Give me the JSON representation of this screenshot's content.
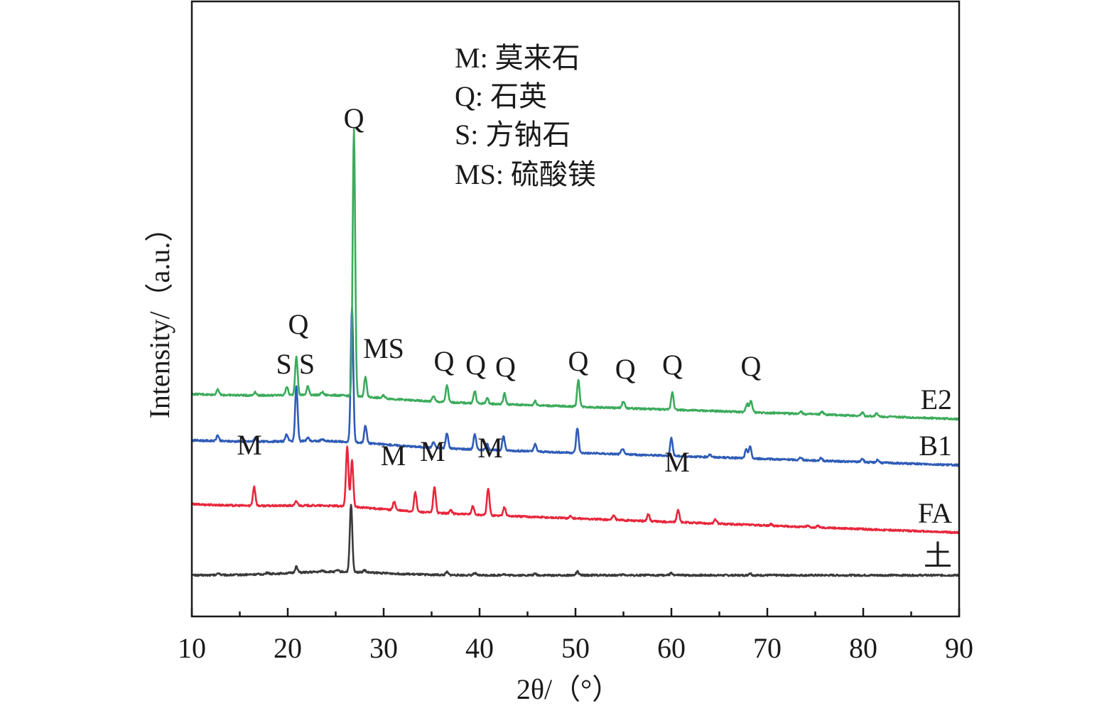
{
  "chart_data": {
    "type": "line",
    "xlabel": "2θ/（°）",
    "ylabel": "Intensity/（a.u.）",
    "xlim": [
      10,
      90
    ],
    "xticks": [
      10,
      20,
      30,
      40,
      50,
      60,
      70,
      80,
      90
    ],
    "grid": false,
    "legend": {
      "placement": "top-center",
      "entries": [
        "M: 莫来石",
        "Q: 石英",
        "S: 方钠石",
        "MS: 硫酸镁"
      ]
    },
    "series": [
      {
        "name": "土",
        "color": "#3a3a3c",
        "baseline_start": 0.0,
        "baseline_end": 0.0,
        "peaks": [
          {
            "x": 12.8,
            "h": 0.03
          },
          {
            "x": 17.9,
            "h": 0.02
          },
          {
            "x": 20.9,
            "h": 0.09
          },
          {
            "x": 23.6,
            "h": 0.02
          },
          {
            "x": 25.2,
            "h": 0.02
          },
          {
            "x": 26.6,
            "h": 0.95
          },
          {
            "x": 28.0,
            "h": 0.03
          },
          {
            "x": 36.6,
            "h": 0.04
          },
          {
            "x": 39.5,
            "h": 0.03
          },
          {
            "x": 42.5,
            "h": 0.02
          },
          {
            "x": 45.8,
            "h": 0.02
          },
          {
            "x": 50.2,
            "h": 0.05
          },
          {
            "x": 55.0,
            "h": 0.01
          },
          {
            "x": 60.0,
            "h": 0.03
          },
          {
            "x": 68.2,
            "h": 0.03
          }
        ]
      },
      {
        "name": "FA",
        "color": "#e8263b",
        "baseline_start": 1.0,
        "baseline_end": 0.6,
        "peaks": [
          {
            "x": 16.5,
            "h": 0.27
          },
          {
            "x": 20.9,
            "h": 0.06
          },
          {
            "x": 26.2,
            "h": 0.85
          },
          {
            "x": 26.7,
            "h": 0.65
          },
          {
            "x": 31.1,
            "h": 0.12
          },
          {
            "x": 33.3,
            "h": 0.27
          },
          {
            "x": 35.3,
            "h": 0.37
          },
          {
            "x": 37.0,
            "h": 0.05
          },
          {
            "x": 39.3,
            "h": 0.12
          },
          {
            "x": 40.9,
            "h": 0.38
          },
          {
            "x": 42.6,
            "h": 0.12
          },
          {
            "x": 49.5,
            "h": 0.03
          },
          {
            "x": 54.0,
            "h": 0.07
          },
          {
            "x": 57.6,
            "h": 0.1
          },
          {
            "x": 60.7,
            "h": 0.18
          },
          {
            "x": 64.6,
            "h": 0.06
          },
          {
            "x": 70.4,
            "h": 0.02
          },
          {
            "x": 74.2,
            "h": 0.02
          },
          {
            "x": 75.3,
            "h": 0.02
          }
        ]
      },
      {
        "name": "B1",
        "color": "#2f5cb7",
        "baseline_start": 1.9,
        "baseline_end": 1.55,
        "peaks": [
          {
            "x": 12.7,
            "h": 0.08
          },
          {
            "x": 16.6,
            "h": 0.05
          },
          {
            "x": 19.9,
            "h": 0.1
          },
          {
            "x": 20.9,
            "h": 0.78
          },
          {
            "x": 22.1,
            "h": 0.05
          },
          {
            "x": 23.6,
            "h": 0.03
          },
          {
            "x": 26.7,
            "h": 1.9
          },
          {
            "x": 28.1,
            "h": 0.25
          },
          {
            "x": 35.2,
            "h": 0.08
          },
          {
            "x": 36.6,
            "h": 0.22
          },
          {
            "x": 39.5,
            "h": 0.22
          },
          {
            "x": 40.8,
            "h": 0.08
          },
          {
            "x": 42.5,
            "h": 0.2
          },
          {
            "x": 45.8,
            "h": 0.1
          },
          {
            "x": 50.2,
            "h": 0.35
          },
          {
            "x": 54.9,
            "h": 0.08
          },
          {
            "x": 60.0,
            "h": 0.25
          },
          {
            "x": 64.0,
            "h": 0.04
          },
          {
            "x": 67.8,
            "h": 0.12
          },
          {
            "x": 68.2,
            "h": 0.17
          },
          {
            "x": 73.5,
            "h": 0.04
          },
          {
            "x": 75.6,
            "h": 0.04
          },
          {
            "x": 79.9,
            "h": 0.05
          },
          {
            "x": 81.5,
            "h": 0.04
          }
        ]
      },
      {
        "name": "E2",
        "color": "#3cab5c",
        "baseline_start": 2.55,
        "baseline_end": 2.2,
        "peaks": [
          {
            "x": 12.7,
            "h": 0.08
          },
          {
            "x": 16.6,
            "h": 0.05
          },
          {
            "x": 19.9,
            "h": 0.12
          },
          {
            "x": 20.9,
            "h": 0.55
          },
          {
            "x": 22.1,
            "h": 0.12
          },
          {
            "x": 23.6,
            "h": 0.04
          },
          {
            "x": 26.9,
            "h": 3.75
          },
          {
            "x": 28.1,
            "h": 0.28
          },
          {
            "x": 30.0,
            "h": 0.04
          },
          {
            "x": 35.2,
            "h": 0.08
          },
          {
            "x": 36.6,
            "h": 0.24
          },
          {
            "x": 39.5,
            "h": 0.17
          },
          {
            "x": 40.8,
            "h": 0.08
          },
          {
            "x": 42.6,
            "h": 0.15
          },
          {
            "x": 45.8,
            "h": 0.06
          },
          {
            "x": 50.3,
            "h": 0.38
          },
          {
            "x": 55.0,
            "h": 0.1
          },
          {
            "x": 60.1,
            "h": 0.25
          },
          {
            "x": 67.9,
            "h": 0.12
          },
          {
            "x": 68.3,
            "h": 0.16
          },
          {
            "x": 73.5,
            "h": 0.04
          },
          {
            "x": 75.7,
            "h": 0.04
          },
          {
            "x": 79.9,
            "h": 0.05
          },
          {
            "x": 81.4,
            "h": 0.04
          }
        ]
      }
    ],
    "peak_labels": [
      {
        "text": "Q",
        "x": 26.9,
        "y": 6.3
      },
      {
        "text": "Q",
        "x": 21.1,
        "y": 3.4
      },
      {
        "text": "S",
        "x": 19.6,
        "y": 2.84
      },
      {
        "text": "S",
        "x": 22.0,
        "y": 2.84
      },
      {
        "text": "MS",
        "x": 30.0,
        "y": 3.06
      },
      {
        "text": "Q",
        "x": 36.3,
        "y": 2.88
      },
      {
        "text": "Q",
        "x": 39.6,
        "y": 2.83
      },
      {
        "text": "Q",
        "x": 42.7,
        "y": 2.8
      },
      {
        "text": "Q",
        "x": 50.3,
        "y": 2.88
      },
      {
        "text": "Q",
        "x": 55.2,
        "y": 2.77
      },
      {
        "text": "Q",
        "x": 60.1,
        "y": 2.83
      },
      {
        "text": "Q",
        "x": 68.3,
        "y": 2.81
      },
      {
        "text": "M",
        "x": 16.0,
        "y": 1.7
      },
      {
        "text": "M",
        "x": 31.0,
        "y": 1.55
      },
      {
        "text": "M",
        "x": 35.1,
        "y": 1.61
      },
      {
        "text": "M",
        "x": 41.1,
        "y": 1.66
      },
      {
        "text": "M",
        "x": 60.6,
        "y": 1.46
      }
    ]
  }
}
